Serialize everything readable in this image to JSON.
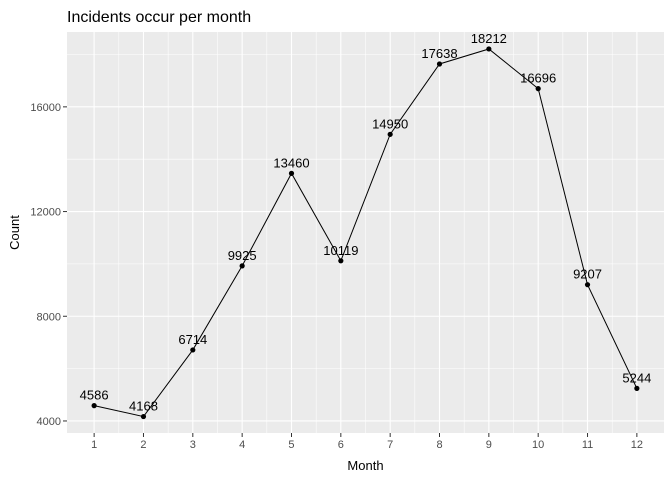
{
  "chart_data": {
    "type": "line",
    "title": "Incidents occur per month",
    "xlabel": "Month",
    "ylabel": "Count",
    "x": [
      1,
      2,
      3,
      4,
      5,
      6,
      7,
      8,
      9,
      10,
      11,
      12
    ],
    "values": [
      4586,
      4168,
      6714,
      9925,
      13460,
      10119,
      14950,
      17638,
      18212,
      16696,
      9207,
      5244
    ],
    "xlim": [
      0.45,
      12.55
    ],
    "ylim": [
      3540,
      18860
    ],
    "x_ticks": [
      1,
      2,
      3,
      4,
      5,
      6,
      7,
      8,
      9,
      10,
      11,
      12
    ],
    "y_ticks": [
      4000,
      8000,
      12000,
      16000
    ],
    "grid": true,
    "colors": {
      "panel_background": "#ebebeb",
      "grid_line": "#ffffff",
      "line": "#000000",
      "point": "#000000",
      "tick_label": "#4d4d4d"
    }
  }
}
